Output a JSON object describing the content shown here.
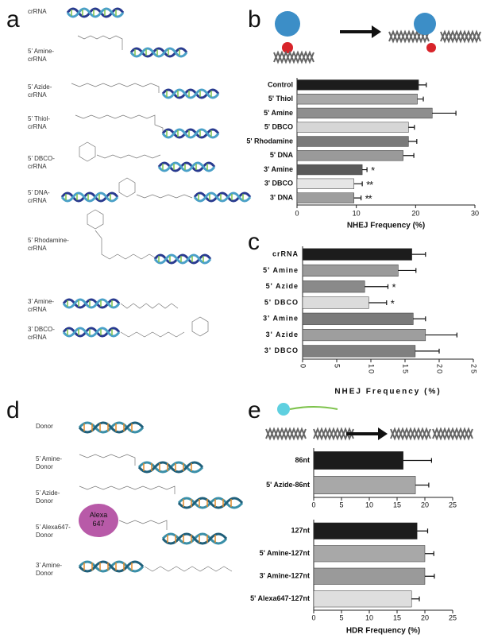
{
  "panels": {
    "a": {
      "letter": "a",
      "labels": [
        "crRNA",
        "5’ Amine-crRNA",
        "5’ Azide-crRNA",
        "5’ Thiol-crRNA",
        "5’ DBCO-crRNA",
        "5’ DNA-crRNA",
        "5’ Rhodamine-crRNA",
        "3’ Amine-crRNA",
        "3’ DBCO-crRNA"
      ]
    },
    "b": {
      "letter": "b"
    },
    "c": {
      "letter": "c"
    },
    "d": {
      "letter": "d",
      "labels": [
        "Donor",
        "5’ Amine-Donor",
        "5’ Azide-Donor",
        "5’ Alexa647-Donor",
        "3’ Amine-Donor"
      ],
      "dye": "Alexa 647"
    },
    "e": {
      "letter": "e"
    }
  },
  "chart_data": [
    {
      "type": "bar",
      "orientation": "horizontal",
      "categories": [
        "Control",
        "5' Thiol",
        "5' Amine",
        "5' DBCO",
        "5' Rhodamine",
        "5' DNA",
        "3' Amine",
        "3' DBCO",
        "3' DNA"
      ],
      "values": [
        20.5,
        20.3,
        22.8,
        18.8,
        18.8,
        17.9,
        11.0,
        9.6,
        9.6
      ],
      "errors": [
        1.3,
        1.0,
        4.0,
        1.0,
        1.4,
        1.8,
        0.8,
        1.4,
        1.2
      ],
      "colors": [
        "#1c1c1c",
        "#a8a8a8",
        "#8e8e8e",
        "#d6d6d6",
        "#7a7a7a",
        "#9a9a9a",
        "#5a5a5a",
        "#e6e6e6",
        "#9e9e9e"
      ],
      "significance": [
        null,
        null,
        null,
        null,
        null,
        null,
        "*",
        "**",
        "**"
      ],
      "xlim": [
        0,
        30
      ],
      "xticks": [
        0,
        10,
        20,
        30
      ],
      "xlabel": "NHEJ Frequency (%)"
    },
    {
      "type": "bar",
      "orientation": "horizontal",
      "categories": [
        "crRNA",
        "5' Amine",
        "5' Azide",
        "5' DBCO",
        "3' Amine",
        "3' Azide",
        "3' DBCO"
      ],
      "values": [
        16.0,
        14.0,
        9.1,
        9.7,
        16.2,
        18.0,
        16.5
      ],
      "errors": [
        2.0,
        2.6,
        3.4,
        2.6,
        1.8,
        4.6,
        3.5
      ],
      "colors": [
        "#1c1c1c",
        "#9a9a9a",
        "#8a8a8a",
        "#dcdcdc",
        "#7a7a7a",
        "#9e9e9e",
        "#808080"
      ],
      "significance": [
        null,
        null,
        "*",
        "*",
        null,
        null,
        null
      ],
      "xlim": [
        0,
        25
      ],
      "xticks": [
        0,
        5,
        10,
        15,
        20,
        25
      ],
      "xlabel": "NHEJ Frequency (%)"
    },
    {
      "type": "bar",
      "orientation": "horizontal",
      "categories": [
        "86nt",
        "5' Azide-86nt"
      ],
      "values": [
        16.1,
        18.3
      ],
      "errors": [
        5.1,
        2.4
      ],
      "colors": [
        "#1c1c1c",
        "#a8a8a8"
      ],
      "xlim": [
        0,
        25
      ],
      "xticks": [
        0,
        5,
        10,
        15,
        20,
        25
      ]
    },
    {
      "type": "bar",
      "orientation": "horizontal",
      "categories": [
        "127nt",
        "5' Amine-127nt",
        "3' Amine-127nt",
        "5' Alexa647-127nt"
      ],
      "values": [
        18.6,
        20.0,
        20.0,
        17.6
      ],
      "errors": [
        1.9,
        1.6,
        1.7,
        1.4
      ],
      "colors": [
        "#1c1c1c",
        "#a8a8a8",
        "#9a9a9a",
        "#dedede"
      ],
      "xlim": [
        0,
        25
      ],
      "xticks": [
        0,
        5,
        10,
        15,
        20,
        25
      ],
      "xlabel": "HDR Frequency (%)"
    }
  ]
}
